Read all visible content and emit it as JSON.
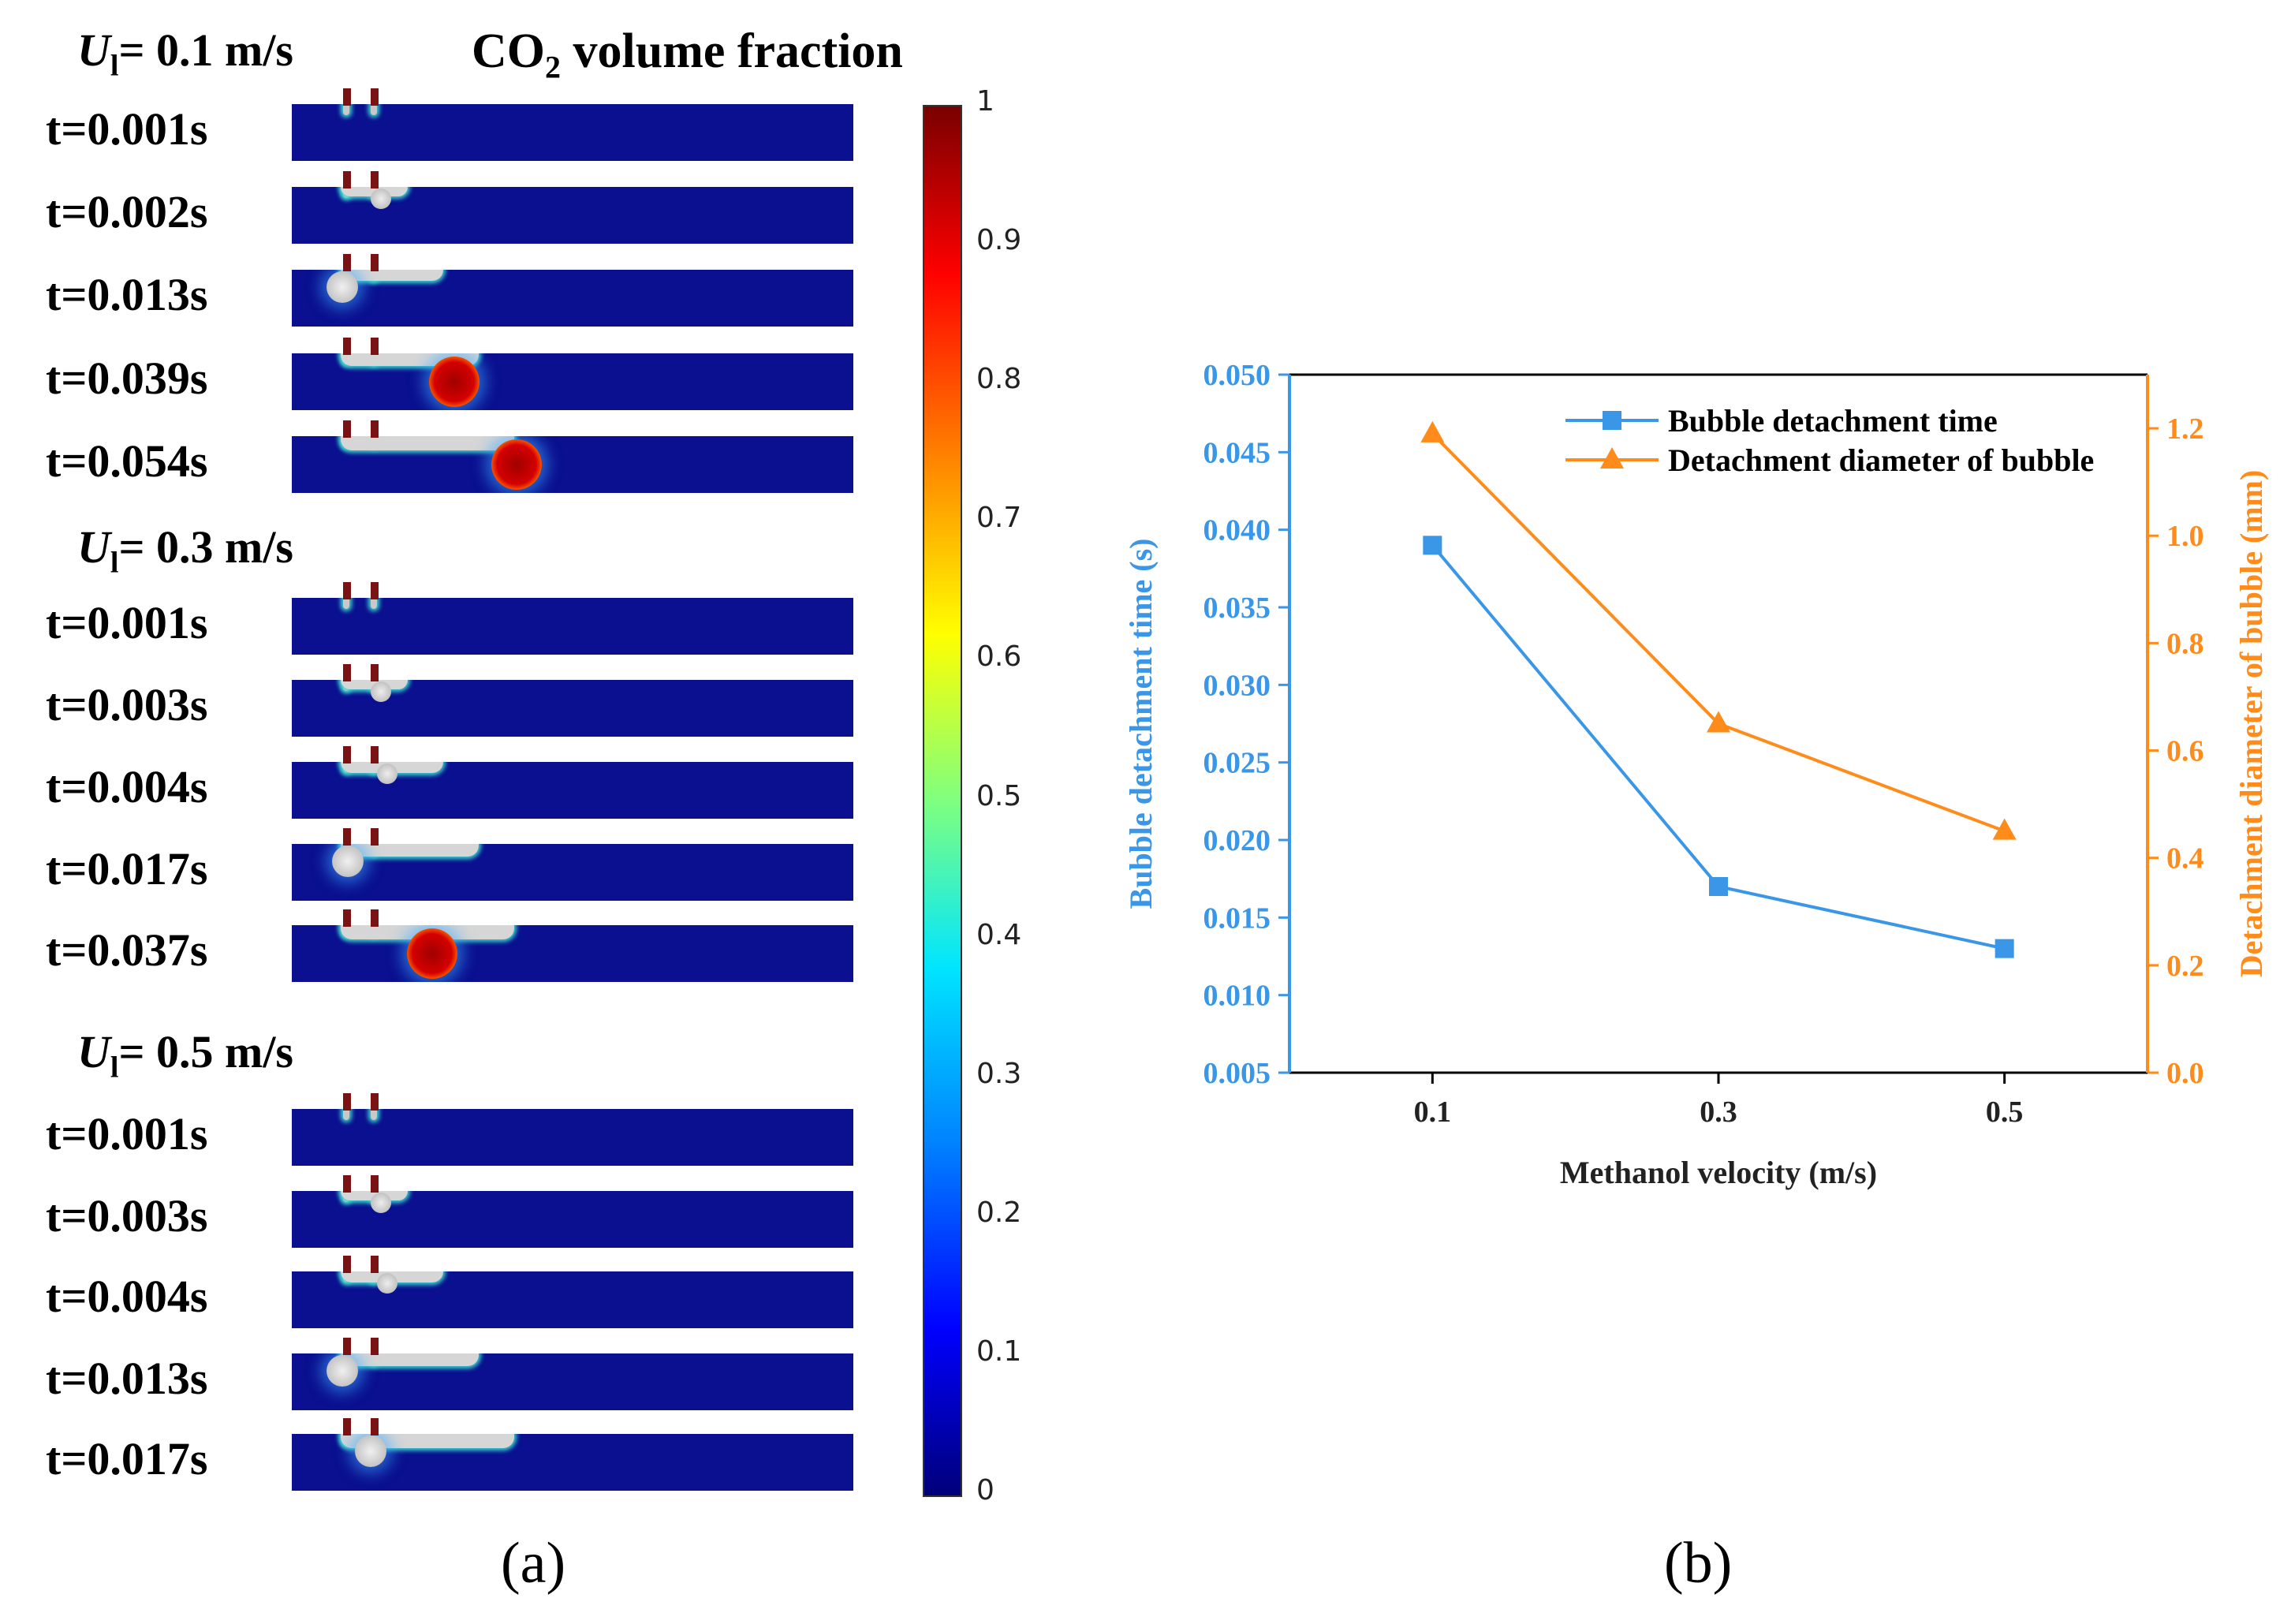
{
  "panel_a": {
    "label": "(a)",
    "colorbar": {
      "title_main": "CO",
      "title_sub": "2",
      "title_rest": " volume fraction",
      "ticks": [
        "1",
        "0.9",
        "0.8",
        "0.7",
        "0.6",
        "0.5",
        "0.4",
        "0.3",
        "0.2",
        "0.1",
        "0"
      ]
    },
    "groups": [
      {
        "u_var": "U",
        "u_sub": "l",
        "u_value": "= 0.1 m/s",
        "frames": [
          {
            "t": "t=0.001s",
            "stage": 0,
            "bubble": 0
          },
          {
            "t": "t=0.002s",
            "stage": 1,
            "bubble": 0
          },
          {
            "t": "t=0.013s",
            "stage": 2,
            "bubble": 0.09
          },
          {
            "t": "t=0.039s",
            "stage": 3,
            "bubble": 0.29
          },
          {
            "t": "t=0.054s",
            "stage": 4,
            "bubble": 0.4
          }
        ]
      },
      {
        "u_var": "U",
        "u_sub": "l",
        "u_value": "= 0.3 m/s",
        "frames": [
          {
            "t": "t=0.001s",
            "stage": 0,
            "bubble": 0
          },
          {
            "t": "t=0.003s",
            "stage": 1,
            "bubble": 0
          },
          {
            "t": "t=0.004s",
            "stage": 2,
            "bubble": 0
          },
          {
            "t": "t=0.017s",
            "stage": 3,
            "bubble": 0.1
          },
          {
            "t": "t=0.037s",
            "stage": 4,
            "bubble": 0.25
          }
        ]
      },
      {
        "u_var": "U",
        "u_sub": "l",
        "u_value": "= 0.5 m/s",
        "frames": [
          {
            "t": "t=0.001s",
            "stage": 0,
            "bubble": 0
          },
          {
            "t": "t=0.003s",
            "stage": 1,
            "bubble": 0
          },
          {
            "t": "t=0.004s",
            "stage": 2,
            "bubble": 0
          },
          {
            "t": "t=0.013s",
            "stage": 3,
            "bubble": 0.09
          },
          {
            "t": "t=0.017s",
            "stage": 4,
            "bubble": 0.14
          }
        ]
      }
    ]
  },
  "chart_data": {
    "type": "line",
    "panel_label": "(b)",
    "categories": [
      "0.1",
      "0.3",
      "0.5"
    ],
    "x": [
      0.1,
      0.3,
      0.5
    ],
    "xlabel": "Methanol velocity (m/s)",
    "xlim": [
      0.0,
      0.6
    ],
    "y_left": {
      "label": "Bubble detachment time (s)",
      "lim": [
        0.005,
        0.05
      ],
      "ticks": [
        "0.005",
        "0.010",
        "0.015",
        "0.020",
        "0.025",
        "0.030",
        "0.035",
        "0.040",
        "0.045",
        "0.050"
      ],
      "color": "#3a96e6"
    },
    "y_right": {
      "label": "Detachment diameter of bubble (mm)",
      "lim": [
        0.0,
        1.3
      ],
      "ticks": [
        "0.0",
        "0.2",
        "0.4",
        "0.6",
        "0.8",
        "1.0",
        "1.2"
      ],
      "color": "#ff8c1a"
    },
    "series": [
      {
        "name": "Bubble detachment time",
        "axis": "left",
        "marker": "square",
        "color": "#3a96e6",
        "values": [
          0.039,
          0.017,
          0.013
        ]
      },
      {
        "name": "Detachment diameter of bubble",
        "axis": "right",
        "marker": "triangle",
        "color": "#ff8c1a",
        "values": [
          1.19,
          0.65,
          0.45
        ]
      }
    ],
    "legend": "top-center"
  }
}
